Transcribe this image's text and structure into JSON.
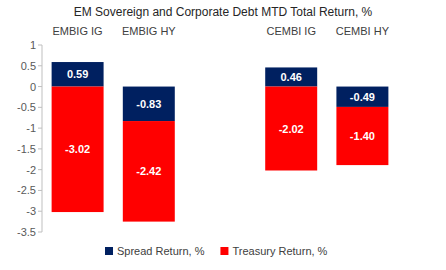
{
  "chart_data": {
    "type": "bar",
    "title": "EM Sovereign and Corporate Debt MTD Total Return, %",
    "categories": [
      "EMBIG IG",
      "EMBIG HY",
      null,
      "CEMBI IG",
      "CEMBI HY"
    ],
    "series": [
      {
        "name": "Spread Return, %",
        "color": "#002060",
        "values": [
          0.59,
          -0.83,
          null,
          0.46,
          -0.49
        ],
        "value_labels": [
          "0.59",
          "-0.83",
          null,
          "0.46",
          "-0.49"
        ]
      },
      {
        "name": "Treasury Return, %",
        "color": "#ff0000",
        "values": [
          -3.02,
          -2.42,
          null,
          -2.02,
          -1.4
        ],
        "value_labels": [
          "-3.02",
          "-2.42",
          null,
          "-2.02",
          "-1.40"
        ]
      }
    ],
    "stacked": true,
    "data_labels": true,
    "grid": false,
    "legend": "bottom",
    "ylim": [
      -3.5,
      1
    ],
    "yticks": [
      -3.5,
      -3,
      -2.5,
      -2,
      -1.5,
      -1,
      -0.5,
      0,
      0.5,
      1
    ]
  }
}
